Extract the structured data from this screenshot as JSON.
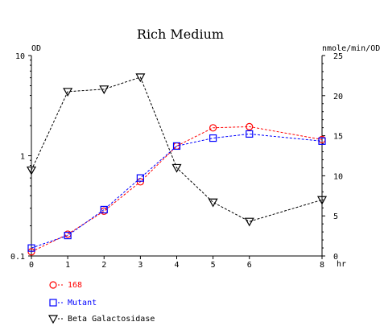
{
  "chart_data": {
    "type": "line",
    "title": "Rich Medium",
    "xlabel": "hr",
    "ylabel_left": "OD",
    "ylabel_right": "nmole/min/OD",
    "x_ticks": [
      "0",
      "1",
      "2",
      "3",
      "4",
      "5",
      "6",
      "8"
    ],
    "y_left_ticks": [
      "0.1",
      "1",
      "10"
    ],
    "y_right_ticks": [
      "0",
      "5",
      "10",
      "15",
      "20",
      "25"
    ],
    "y_left_scale": "log",
    "ylim_left": [
      0.1,
      10
    ],
    "ylim_right": [
      0,
      25
    ],
    "xlim": [
      0,
      8
    ],
    "grid": false,
    "legend_position": "bottom-left",
    "series": [
      {
        "name": "168",
        "axis": "left",
        "color": "#ff0000",
        "marker": "circle-icon",
        "x": [
          0,
          1,
          2,
          3,
          4,
          5,
          6,
          8
        ],
        "values": [
          0.11,
          0.165,
          0.28,
          0.55,
          1.25,
          1.9,
          1.95,
          1.45
        ]
      },
      {
        "name": "Mutant",
        "axis": "left",
        "color": "#0000ff",
        "marker": "square-icon",
        "x": [
          0,
          1,
          2,
          3,
          4,
          5,
          6,
          8
        ],
        "values": [
          0.12,
          0.16,
          0.29,
          0.6,
          1.25,
          1.5,
          1.65,
          1.4
        ]
      },
      {
        "name": "Beta Galactosidase",
        "axis": "right",
        "color": "#000000",
        "marker": "triangle-down-icon",
        "x": [
          0,
          1,
          2,
          3,
          4,
          5,
          6,
          8
        ],
        "values": [
          10.7,
          20.5,
          20.8,
          22.3,
          11.0,
          6.7,
          4.3,
          7.0
        ]
      }
    ]
  }
}
